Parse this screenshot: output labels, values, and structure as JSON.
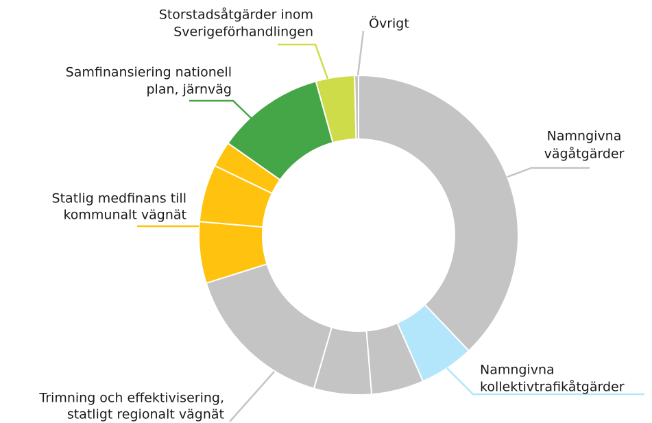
{
  "chart_data": {
    "type": "donut",
    "categories": [
      "Namngivna\nvägåtgärder",
      "Namngivna\nkollektivtrafikåtgärder",
      null,
      null,
      "Trimning och effektivisering,\nstatligt regionalt vägnät",
      "Statlig medfinans till\nkommunalt vägnät",
      null,
      null,
      "Samfinansiering nationell\nplan, järnväg",
      "Storstadsåtgärder inom\nSverigeförhandlingen",
      "Övrigt"
    ],
    "values": [
      37.8,
      5.5,
      5.3,
      5.8,
      15.6,
      6.2,
      5.8,
      2.6,
      10.9,
      3.9,
      0.4
    ],
    "colors": [
      "#c4c4c4",
      "#b3e5fb",
      "#c4c4c4",
      "#c4c4c4",
      "#c4c4c4",
      "#ffc20e",
      "#ffc20e",
      "#ffc20e",
      "#44a647",
      "#cfdc4a",
      "#c4c4c4"
    ]
  }
}
